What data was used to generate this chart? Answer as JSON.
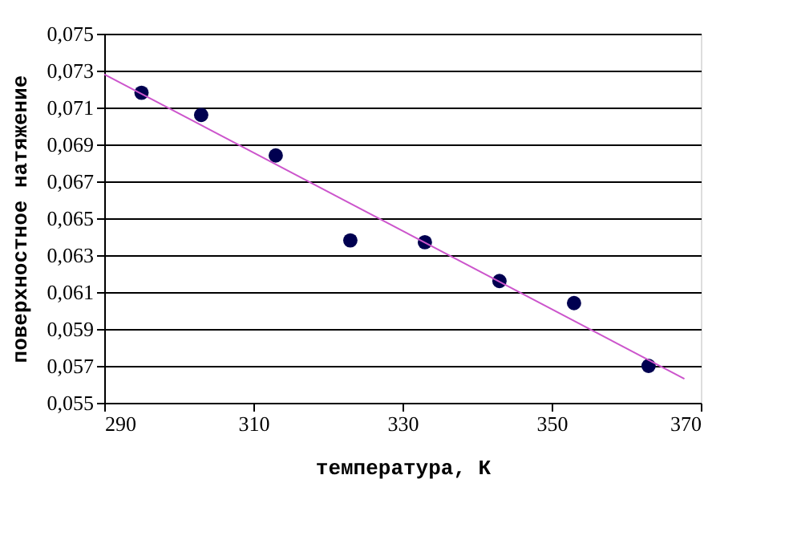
{
  "chart_data": {
    "type": "scatter",
    "xlabel": "температура, К",
    "ylabel": "поверхностное натяжение",
    "xlim": [
      290,
      370
    ],
    "xticks": [
      290,
      310,
      330,
      350,
      370
    ],
    "ylim": [
      0.055,
      0.075
    ],
    "yticks": [
      {
        "value": 0.055,
        "label": "0,055"
      },
      {
        "value": 0.057,
        "label": "0,057"
      },
      {
        "value": 0.059,
        "label": "0,059"
      },
      {
        "value": 0.061,
        "label": "0,061"
      },
      {
        "value": 0.063,
        "label": "0,063"
      },
      {
        "value": 0.065,
        "label": "0,065"
      },
      {
        "value": 0.067,
        "label": "0,067"
      },
      {
        "value": 0.069,
        "label": "0,069"
      },
      {
        "value": 0.071,
        "label": "0,071"
      },
      {
        "value": 0.073,
        "label": "0,073"
      },
      {
        "value": 0.075,
        "label": "0,075"
      }
    ],
    "grid": "y",
    "series": [
      {
        "type": "scatter",
        "marker": "circle",
        "color": "#000050",
        "x": [
          295,
          303,
          313,
          323,
          333,
          343,
          353,
          363
        ],
        "values": [
          0.0718,
          0.0706,
          0.0684,
          0.0638,
          0.0637,
          0.0616,
          0.0604,
          0.057
        ]
      },
      {
        "type": "line",
        "color": "#cc55cc",
        "x": [
          290,
          367.8
        ],
        "values": [
          0.0728,
          0.0563
        ]
      }
    ]
  }
}
